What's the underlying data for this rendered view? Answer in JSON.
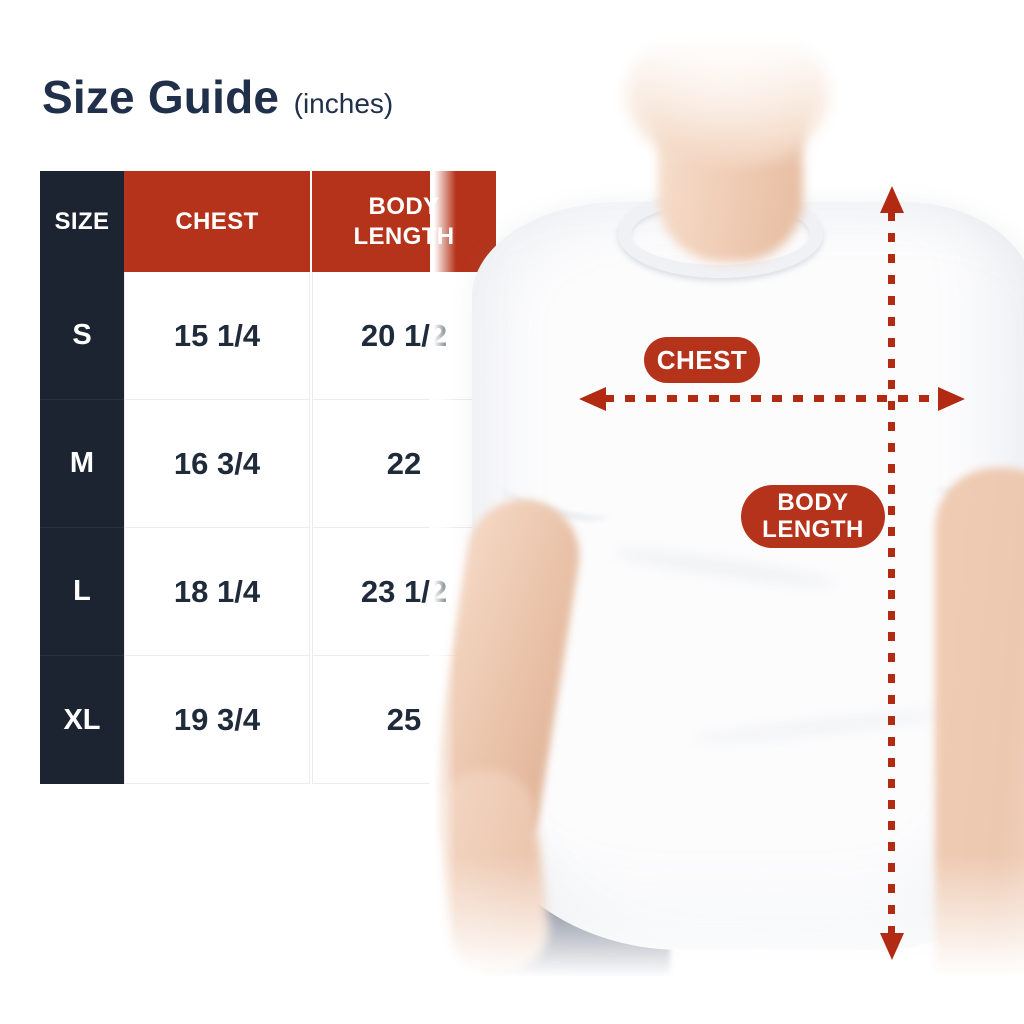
{
  "title": {
    "text": "Size Guide",
    "unit": "(inches)"
  },
  "table": {
    "headers": {
      "size": "SIZE",
      "chest": "CHEST",
      "body_length": "BODY LENGTH"
    },
    "rows": [
      {
        "size": "S",
        "chest": "15 1/4",
        "body_length": "20 1/2"
      },
      {
        "size": "M",
        "chest": "16 3/4",
        "body_length": "22"
      },
      {
        "size": "L",
        "chest": "18 1/4",
        "body_length": "23 1/2"
      },
      {
        "size": "XL",
        "chest": "19 3/4",
        "body_length": "25"
      }
    ]
  },
  "figure": {
    "chest_label": "CHEST",
    "body_length_label": "BODY LENGTH"
  },
  "colors": {
    "accent_red": "#b5331a",
    "arrow_red": "#b32a12",
    "header_dark": "#1b2430",
    "text_navy": "#1f2a3a",
    "background": "#ffffff"
  },
  "chart_data": {
    "type": "table",
    "title": "Size Guide (inches)",
    "units": "inches",
    "columns": [
      "SIZE",
      "CHEST",
      "BODY LENGTH"
    ],
    "rows": [
      [
        "S",
        "15 1/4",
        "20 1/2"
      ],
      [
        "M",
        "16 3/4",
        "22"
      ],
      [
        "L",
        "18 1/4",
        "23 1/2"
      ],
      [
        "XL",
        "19 3/4",
        "25"
      ]
    ],
    "annotations": [
      "CHEST",
      "BODY LENGTH"
    ]
  }
}
